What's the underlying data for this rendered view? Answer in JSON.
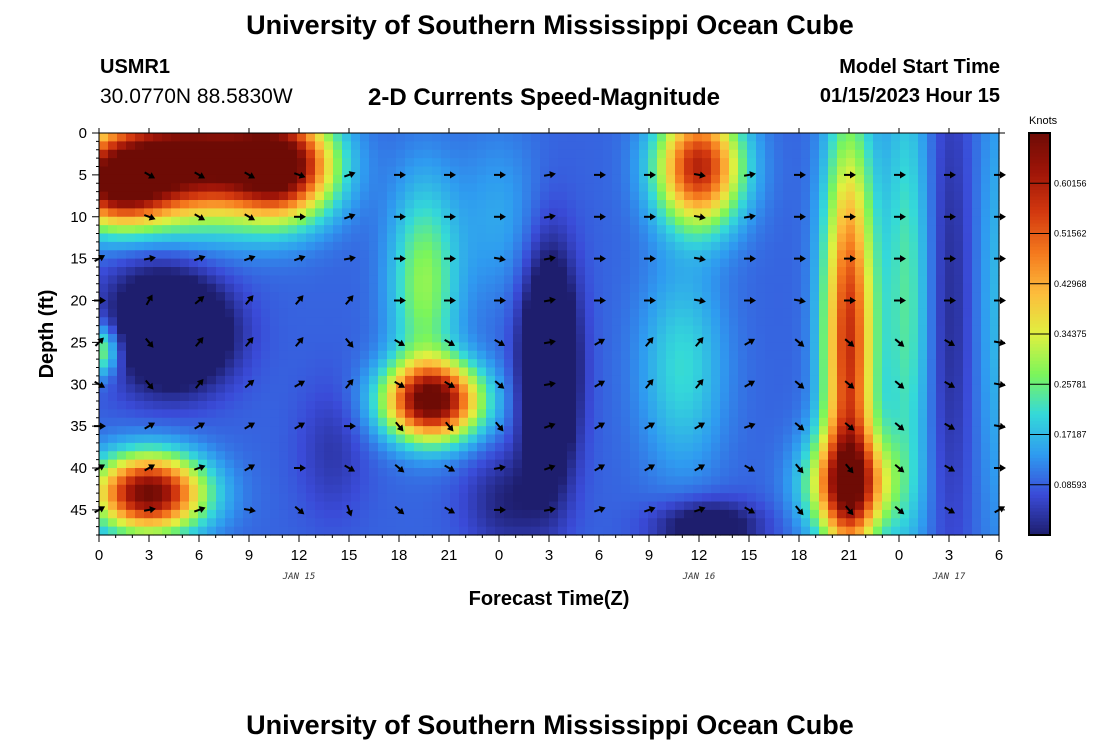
{
  "header": {
    "title": "University of Southern Mississippi Ocean Cube",
    "station_id": "USMR1",
    "coords": "30.0770N  88.5830W",
    "plot_title": "2-D Currents Speed-Magnitude",
    "start_label": "Model Start Time",
    "start_value": "01/15/2023 Hour 15"
  },
  "footer": {
    "title": "University of Southern Mississippi Ocean Cube"
  },
  "chart_data": {
    "type": "heatmap",
    "title": "2-D Currents Speed-Magnitude",
    "xlabel": "Forecast Time(Z)",
    "ylabel": "Depth (ft)",
    "x_tick_labels": [
      "0",
      "3",
      "6",
      "9",
      "12",
      "15",
      "18",
      "21",
      "0",
      "3",
      "6",
      "9",
      "12",
      "15",
      "18",
      "21",
      "0",
      "3",
      "6"
    ],
    "date_labels": [
      {
        "text": "JAN 15",
        "at_hour": 12
      },
      {
        "text": "JAN 16",
        "at_hour": 36
      },
      {
        "text": "JAN 17",
        "at_hour": 51
      }
    ],
    "x_range_hours": [
      0,
      54
    ],
    "y_ticks": [
      0,
      5,
      10,
      15,
      20,
      25,
      30,
      35,
      40,
      45
    ],
    "ylim": [
      0,
      48
    ],
    "y_inverted": true,
    "colorbar": {
      "unit": "Knots",
      "tick_values": [
        "0.08593",
        "0.17187",
        "0.25781",
        "0.34375",
        "0.42968",
        "0.51562",
        "0.60156"
      ],
      "range": [
        0,
        0.6875
      ],
      "colors": [
        "#1e1e6e",
        "#3a4bd8",
        "#2f9bf0",
        "#34d9d9",
        "#7cf55a",
        "#e0f040",
        "#fdbd3c",
        "#f57a1e",
        "#d43a0f",
        "#a01508",
        "#6e0b05"
      ]
    },
    "grid": false,
    "speed_hotspots_note_free": true,
    "hotspots": [
      {
        "t": 5.5,
        "d": 3,
        "v": 0.62,
        "st": 5,
        "sd": 7
      },
      {
        "t": 1.0,
        "d": 6,
        "v": 0.5,
        "st": 3,
        "sd": 5
      },
      {
        "t": 11,
        "d": 4,
        "v": 0.55,
        "st": 3,
        "sd": 6
      },
      {
        "t": 5,
        "d": 24,
        "v": -0.22,
        "st": 3,
        "sd": 6
      },
      {
        "t": 3,
        "d": 22,
        "v": -0.1,
        "st": 3,
        "sd": 8
      },
      {
        "t": 0,
        "d": 26,
        "v": 0.22,
        "st": 1.2,
        "sd": 3
      },
      {
        "t": 3,
        "d": 43,
        "v": 0.6,
        "st": 3.2,
        "sd": 4.5
      },
      {
        "t": 20,
        "d": 32,
        "v": 0.6,
        "st": 2.8,
        "sd": 4.5
      },
      {
        "t": 19.5,
        "d": 18,
        "v": 0.2,
        "st": 2,
        "sd": 12
      },
      {
        "t": 24,
        "d": 10,
        "v": 0.06,
        "st": 2.5,
        "sd": 10
      },
      {
        "t": 27,
        "d": 28,
        "v": -0.28,
        "st": 1.6,
        "sd": 13
      },
      {
        "t": 24.5,
        "d": 44,
        "v": -0.08,
        "st": 2.5,
        "sd": 6
      },
      {
        "t": 36,
        "d": 4,
        "v": 0.5,
        "st": 2.5,
        "sd": 7
      },
      {
        "t": 35,
        "d": 28,
        "v": 0.12,
        "st": 2.5,
        "sd": 12
      },
      {
        "t": 36.5,
        "d": 47,
        "v": -0.15,
        "st": 3,
        "sd": 3
      },
      {
        "t": 45,
        "d": 25,
        "v": 0.48,
        "st": 1.5,
        "sd": 25
      },
      {
        "t": 45,
        "d": 42,
        "v": 0.4,
        "st": 2.5,
        "sd": 6
      },
      {
        "t": 48.5,
        "d": 20,
        "v": 0.15,
        "st": 1.5,
        "sd": 30
      },
      {
        "t": 51,
        "d": 20,
        "v": -0.07,
        "st": 1.5,
        "sd": 30
      },
      {
        "t": 54,
        "d": 20,
        "v": 0.08,
        "st": 1.5,
        "sd": 30
      },
      {
        "t": 14,
        "d": 38,
        "v": -0.05,
        "st": 2,
        "sd": 8
      }
    ],
    "vectors": {
      "times": [
        0,
        3,
        6,
        9,
        12,
        15,
        18,
        21,
        24,
        27,
        30,
        33,
        36,
        39,
        42,
        45,
        48,
        51,
        54
      ],
      "depths": [
        5,
        10,
        15,
        20,
        25,
        30,
        35,
        40,
        45
      ],
      "directions_deg": [
        [
          null,
          120,
          120,
          120,
          110,
          70,
          90,
          90,
          90,
          80,
          90,
          90,
          100,
          80,
          90,
          90,
          90,
          90,
          90
        ],
        [
          null,
          110,
          120,
          120,
          90,
          70,
          90,
          90,
          90,
          80,
          90,
          90,
          100,
          80,
          90,
          90,
          90,
          90,
          90
        ],
        [
          60,
          80,
          70,
          70,
          70,
          80,
          90,
          90,
          100,
          80,
          90,
          90,
          100,
          90,
          90,
          90,
          90,
          90,
          90
        ],
        [
          90,
          30,
          50,
          40,
          40,
          40,
          90,
          90,
          90,
          80,
          90,
          90,
          100,
          90,
          100,
          90,
          90,
          90,
          90
        ],
        [
          45,
          140,
          40,
          40,
          40,
          140,
          120,
          120,
          120,
          80,
          60,
          40,
          40,
          60,
          130,
          130,
          130,
          120,
          100
        ],
        [
          120,
          140,
          40,
          50,
          60,
          40,
          120,
          120,
          130,
          80,
          60,
          40,
          40,
          60,
          130,
          130,
          130,
          120,
          100
        ],
        [
          90,
          60,
          60,
          60,
          60,
          90,
          140,
          140,
          140,
          70,
          60,
          60,
          60,
          70,
          130,
          130,
          130,
          120,
          100
        ],
        [
          60,
          60,
          70,
          60,
          90,
          120,
          130,
          120,
          80,
          70,
          60,
          60,
          60,
          120,
          140,
          140,
          130,
          120,
          90
        ],
        [
          60,
          80,
          70,
          100,
          130,
          160,
          130,
          120,
          90,
          80,
          70,
          70,
          70,
          120,
          140,
          140,
          130,
          120,
          60
        ]
      ]
    }
  }
}
